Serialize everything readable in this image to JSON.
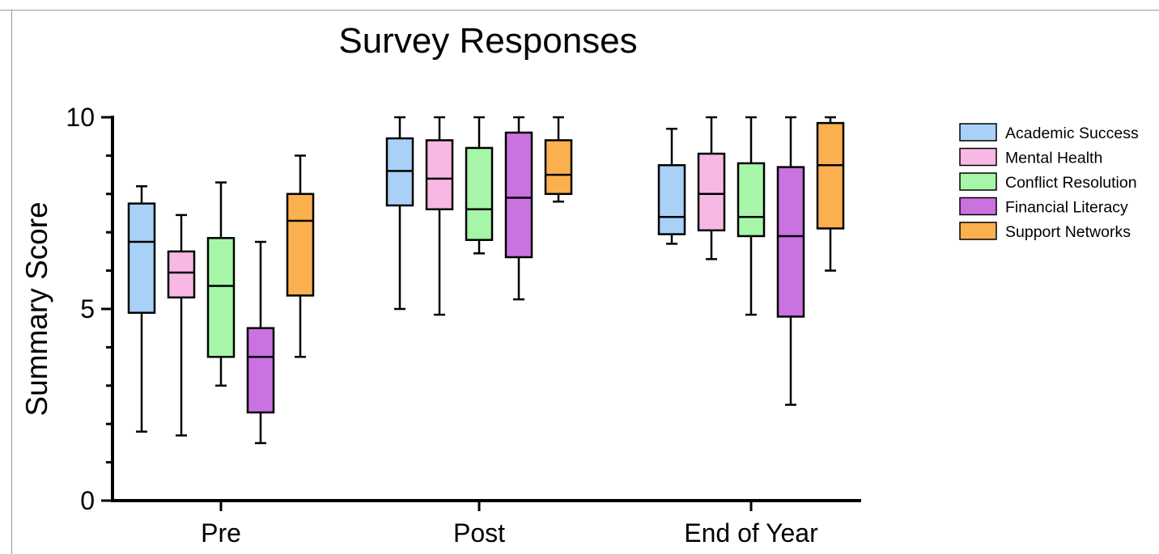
{
  "chart_data": {
    "type": "box",
    "title": "Survey Responses",
    "ylabel": "Summary Score",
    "xlabel": "",
    "ylim": [
      0,
      10
    ],
    "yticks": [
      0,
      5,
      10
    ],
    "y_minor_step": 1,
    "grid": false,
    "legend_position": "right",
    "categories": [
      "Pre",
      "Post",
      "End of Year"
    ],
    "series": [
      {
        "name": "Academic Success",
        "color": "#a9d1f7",
        "boxes": [
          {
            "min": 1.8,
            "q1": 4.9,
            "median": 6.75,
            "q3": 7.75,
            "max": 8.2
          },
          {
            "min": 5.0,
            "q1": 7.7,
            "median": 8.6,
            "q3": 9.45,
            "max": 10.0
          },
          {
            "min": 6.7,
            "q1": 6.95,
            "median": 7.4,
            "q3": 8.75,
            "max": 9.7
          }
        ]
      },
      {
        "name": "Mental Health",
        "color": "#f7b9e4",
        "boxes": [
          {
            "min": 1.7,
            "q1": 5.3,
            "median": 5.95,
            "q3": 6.5,
            "max": 7.45
          },
          {
            "min": 4.85,
            "q1": 7.6,
            "median": 8.4,
            "q3": 9.4,
            "max": 10.0
          },
          {
            "min": 6.3,
            "q1": 7.05,
            "median": 8.0,
            "q3": 9.05,
            "max": 10.0
          }
        ]
      },
      {
        "name": "Conflict  Resolution",
        "color": "#a6f5a8",
        "boxes": [
          {
            "min": 3.0,
            "q1": 3.75,
            "median": 5.6,
            "q3": 6.85,
            "max": 8.3
          },
          {
            "min": 6.45,
            "q1": 6.8,
            "median": 7.6,
            "q3": 9.2,
            "max": 10.0
          },
          {
            "min": 4.85,
            "q1": 6.9,
            "median": 7.4,
            "q3": 8.8,
            "max": 10.0
          }
        ]
      },
      {
        "name": "Financial Literacy",
        "color": "#c972e0",
        "boxes": [
          {
            "min": 1.5,
            "q1": 2.3,
            "median": 3.75,
            "q3": 4.5,
            "max": 6.75
          },
          {
            "min": 5.25,
            "q1": 6.35,
            "median": 7.9,
            "q3": 9.6,
            "max": 10.0
          },
          {
            "min": 2.5,
            "q1": 4.8,
            "median": 6.9,
            "q3": 8.7,
            "max": 10.0
          }
        ]
      },
      {
        "name": "Support  Networks",
        "color": "#fbb04f",
        "boxes": [
          {
            "min": 3.75,
            "q1": 5.35,
            "median": 7.3,
            "q3": 8.0,
            "max": 9.0
          },
          {
            "min": 7.8,
            "q1": 8.0,
            "median": 8.5,
            "q3": 9.4,
            "max": 10.0
          },
          {
            "min": 6.0,
            "q1": 7.1,
            "median": 8.75,
            "q3": 9.85,
            "max": 10.0
          }
        ]
      }
    ]
  }
}
